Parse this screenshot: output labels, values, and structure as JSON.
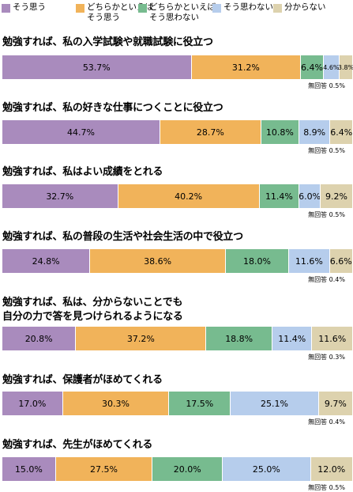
{
  "colors": [
    "#a98bbd",
    "#f1b35a",
    "#77bb8f",
    "#b6cdec",
    "#ddd2ae"
  ],
  "chart_data": {
    "type": "bar",
    "orientation": "horizontal-stacked-100",
    "legend": [
      "そう思う",
      "どちらかといえば\nそう思う",
      "どちらかといえば\nそう思わない",
      "そう思わない",
      "分からない"
    ],
    "no_answer_label": "無回答",
    "rows": [
      {
        "label": "勉強すれば、私の入学試験や就職試験に役立つ",
        "values": [
          53.7,
          31.2,
          6.4,
          4.6,
          3.8
        ],
        "no_answer": 0.5
      },
      {
        "label": "勉強すれば、私の好きな仕事につくことに役立つ",
        "values": [
          44.7,
          28.7,
          10.8,
          8.9,
          6.4
        ],
        "no_answer": 0.5
      },
      {
        "label": "勉強すれば、私はよい成績をとれる",
        "values": [
          32.7,
          40.2,
          11.4,
          6.0,
          9.2
        ],
        "no_answer": 0.5
      },
      {
        "label": "勉強すれば、私の普段の生活や社会生活の中で役立つ",
        "values": [
          24.8,
          38.6,
          18.0,
          11.6,
          6.6
        ],
        "no_answer": 0.4
      },
      {
        "label": "勉強すれば、私は、分からないことでも\n自分の力で答を見つけられるようになる",
        "values": [
          20.8,
          37.2,
          18.8,
          11.4,
          11.6
        ],
        "no_answer": 0.3
      },
      {
        "label": "勉強すれば、保護者がほめてくれる",
        "values": [
          17.0,
          30.3,
          17.5,
          25.1,
          9.7
        ],
        "no_answer": 0.4
      },
      {
        "label": "勉強すれば、先生がほめてくれる",
        "values": [
          15.0,
          27.5,
          20.0,
          25.0,
          12.0
        ],
        "no_answer": 0.5
      }
    ]
  }
}
